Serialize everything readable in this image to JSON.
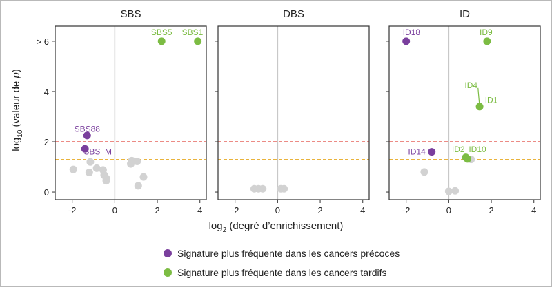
{
  "colors": {
    "early": "#7a3f9d",
    "late": "#7cbc43",
    "neutral": "#d2d2d2",
    "threshold_red": "#e0463c",
    "threshold_orange": "#e9b33c",
    "zero_line": "#c8c8c8"
  },
  "legend": {
    "early_label": "Signature plus fréquente dans les cancers précoces",
    "late_label": "Signature plus fréquente dans les cancers tardifs"
  },
  "chart_data": {
    "type": "scatter",
    "xlabel": "log2 (degré d’enrichissement)",
    "ylabel": "log10 (valeur de p)",
    "xlim": [
      -2.8,
      4.3
    ],
    "ylim": [
      -0.3,
      6.6
    ],
    "x_ticks": [
      -2,
      0,
      2,
      4
    ],
    "x_tick_labels": [
      "-2",
      "0",
      "2",
      "4"
    ],
    "y_ticks": [
      0,
      2,
      4,
      6
    ],
    "y_tick_labels": [
      "0",
      "2",
      "4",
      "> 6"
    ],
    "thresholds": [
      {
        "y": 2.0,
        "color": "red"
      },
      {
        "y": 1.3,
        "color": "orange"
      }
    ],
    "panels": [
      {
        "title": "SBS",
        "points": [
          {
            "x": 2.2,
            "y": 6.0,
            "group": "late",
            "label": "SBS5",
            "lx": 2.2,
            "ly": 6.35
          },
          {
            "x": 3.9,
            "y": 6.0,
            "group": "late",
            "label": "SBS1",
            "lx": 3.65,
            "ly": 6.35
          },
          {
            "x": -1.3,
            "y": 2.25,
            "group": "early",
            "label": "SBS88",
            "lx": -1.3,
            "ly": 2.5
          },
          {
            "x": -1.4,
            "y": 1.72,
            "group": "early",
            "label": "SBS_M",
            "lx": -0.8,
            "ly": 1.6
          },
          {
            "x": -1.95,
            "y": 0.9,
            "group": "neutral"
          },
          {
            "x": -1.15,
            "y": 1.2,
            "group": "neutral"
          },
          {
            "x": -1.2,
            "y": 0.78,
            "group": "neutral"
          },
          {
            "x": -0.85,
            "y": 0.95,
            "group": "neutral"
          },
          {
            "x": -0.55,
            "y": 0.88,
            "group": "neutral"
          },
          {
            "x": -0.5,
            "y": 0.68,
            "group": "neutral"
          },
          {
            "x": -0.4,
            "y": 0.55,
            "group": "neutral"
          },
          {
            "x": -0.4,
            "y": 0.45,
            "group": "neutral"
          },
          {
            "x": 0.75,
            "y": 1.12,
            "group": "neutral"
          },
          {
            "x": 0.8,
            "y": 1.25,
            "group": "neutral"
          },
          {
            "x": 1.05,
            "y": 1.22,
            "group": "neutral"
          },
          {
            "x": 1.35,
            "y": 0.6,
            "group": "neutral"
          },
          {
            "x": 1.1,
            "y": 0.25,
            "group": "neutral"
          }
        ]
      },
      {
        "title": "DBS",
        "points": [
          {
            "x": -1.1,
            "y": 0.13,
            "group": "neutral"
          },
          {
            "x": -0.9,
            "y": 0.13,
            "group": "neutral"
          },
          {
            "x": -0.7,
            "y": 0.13,
            "group": "neutral"
          },
          {
            "x": 0.15,
            "y": 0.13,
            "group": "neutral"
          },
          {
            "x": 0.3,
            "y": 0.13,
            "group": "neutral"
          }
        ]
      },
      {
        "title": "ID",
        "points": [
          {
            "x": -2.0,
            "y": 6.0,
            "group": "early",
            "label": "ID18",
            "lx": -1.75,
            "ly": 6.35
          },
          {
            "x": 1.8,
            "y": 6.0,
            "group": "late",
            "label": "ID9",
            "lx": 1.75,
            "ly": 6.35
          },
          {
            "x": 1.45,
            "y": 3.4,
            "group": "late",
            "label": "ID4",
            "lx": 1.05,
            "ly": 4.25,
            "leader": true
          },
          {
            "x": 1.45,
            "y": 3.4,
            "group": "late",
            "label": "ID1",
            "lx": 2.0,
            "ly": 3.65,
            "nodot": true
          },
          {
            "x": -0.8,
            "y": 1.6,
            "group": "early",
            "label": "ID14",
            "lx": -1.5,
            "ly": 1.6
          },
          {
            "x": 0.8,
            "y": 1.38,
            "group": "late"
          },
          {
            "x": 0.88,
            "y": 1.32,
            "group": "late",
            "label": "ID2",
            "lx": 0.45,
            "ly": 1.7
          },
          {
            "x": 1.05,
            "y": 1.3,
            "group": "neutral",
            "label": "ID10",
            "lx": 1.35,
            "ly": 1.7,
            "labelgroup": "late"
          },
          {
            "x": -1.15,
            "y": 0.8,
            "group": "neutral"
          },
          {
            "x": 0.0,
            "y": 0.03,
            "group": "neutral"
          },
          {
            "x": 0.3,
            "y": 0.05,
            "group": "neutral"
          }
        ]
      }
    ]
  }
}
